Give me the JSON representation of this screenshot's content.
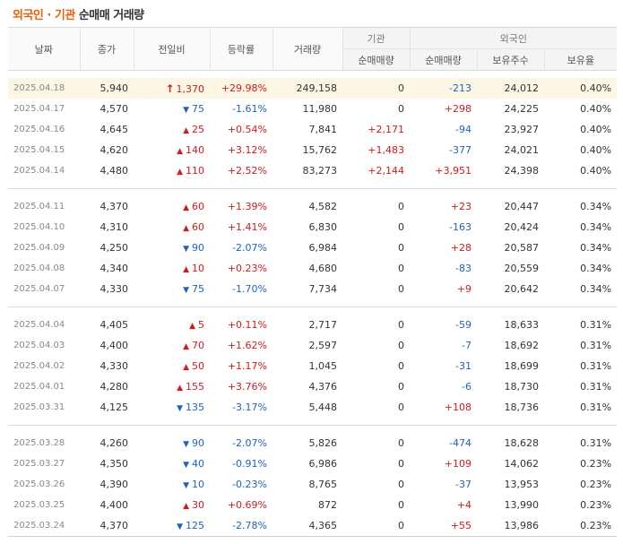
{
  "title": {
    "part1": "외국인 · 기관",
    "part2": "순매매 거래량"
  },
  "headers": {
    "date": "날짜",
    "close": "종가",
    "change": "전일비",
    "rate": "등락률",
    "volume": "거래량",
    "institution": "기관",
    "inst_net": "순매매량",
    "foreign": "외국인",
    "for_net": "순매매량",
    "for_hold": "보유주수",
    "for_ratio": "보유율"
  },
  "groups": [
    [
      {
        "date": "2025.04.18",
        "close": "5,940",
        "dir": "upper",
        "change": "1,370",
        "rate": "+29.98%",
        "volume": "249,158",
        "inst": "0",
        "foreign": "-213",
        "hold": "24,012",
        "ratio": "0.40%",
        "highlight": true
      },
      {
        "date": "2025.04.17",
        "close": "4,570",
        "dir": "down",
        "change": "75",
        "rate": "-1.61%",
        "volume": "11,980",
        "inst": "0",
        "foreign": "+298",
        "hold": "24,225",
        "ratio": "0.40%"
      },
      {
        "date": "2025.04.16",
        "close": "4,645",
        "dir": "up",
        "change": "25",
        "rate": "+0.54%",
        "volume": "7,841",
        "inst": "+2,171",
        "foreign": "-94",
        "hold": "23,927",
        "ratio": "0.40%"
      },
      {
        "date": "2025.04.15",
        "close": "4,620",
        "dir": "up",
        "change": "140",
        "rate": "+3.12%",
        "volume": "15,762",
        "inst": "+1,483",
        "foreign": "-377",
        "hold": "24,021",
        "ratio": "0.40%"
      },
      {
        "date": "2025.04.14",
        "close": "4,480",
        "dir": "up",
        "change": "110",
        "rate": "+2.52%",
        "volume": "83,273",
        "inst": "+2,144",
        "foreign": "+3,951",
        "hold": "24,398",
        "ratio": "0.40%"
      }
    ],
    [
      {
        "date": "2025.04.11",
        "close": "4,370",
        "dir": "up",
        "change": "60",
        "rate": "+1.39%",
        "volume": "4,582",
        "inst": "0",
        "foreign": "+23",
        "hold": "20,447",
        "ratio": "0.34%"
      },
      {
        "date": "2025.04.10",
        "close": "4,310",
        "dir": "up",
        "change": "60",
        "rate": "+1.41%",
        "volume": "6,830",
        "inst": "0",
        "foreign": "-163",
        "hold": "20,424",
        "ratio": "0.34%"
      },
      {
        "date": "2025.04.09",
        "close": "4,250",
        "dir": "down",
        "change": "90",
        "rate": "-2.07%",
        "volume": "6,984",
        "inst": "0",
        "foreign": "+28",
        "hold": "20,587",
        "ratio": "0.34%"
      },
      {
        "date": "2025.04.08",
        "close": "4,340",
        "dir": "up",
        "change": "10",
        "rate": "+0.23%",
        "volume": "4,680",
        "inst": "0",
        "foreign": "-83",
        "hold": "20,559",
        "ratio": "0.34%"
      },
      {
        "date": "2025.04.07",
        "close": "4,330",
        "dir": "down",
        "change": "75",
        "rate": "-1.70%",
        "volume": "7,734",
        "inst": "0",
        "foreign": "+9",
        "hold": "20,642",
        "ratio": "0.34%"
      }
    ],
    [
      {
        "date": "2025.04.04",
        "close": "4,405",
        "dir": "up",
        "change": "5",
        "rate": "+0.11%",
        "volume": "2,717",
        "inst": "0",
        "foreign": "-59",
        "hold": "18,633",
        "ratio": "0.31%"
      },
      {
        "date": "2025.04.03",
        "close": "4,400",
        "dir": "up",
        "change": "70",
        "rate": "+1.62%",
        "volume": "2,597",
        "inst": "0",
        "foreign": "-7",
        "hold": "18,692",
        "ratio": "0.31%"
      },
      {
        "date": "2025.04.02",
        "close": "4,330",
        "dir": "up",
        "change": "50",
        "rate": "+1.17%",
        "volume": "1,045",
        "inst": "0",
        "foreign": "-31",
        "hold": "18,699",
        "ratio": "0.31%"
      },
      {
        "date": "2025.04.01",
        "close": "4,280",
        "dir": "up",
        "change": "155",
        "rate": "+3.76%",
        "volume": "4,376",
        "inst": "0",
        "foreign": "-6",
        "hold": "18,730",
        "ratio": "0.31%"
      },
      {
        "date": "2025.03.31",
        "close": "4,125",
        "dir": "down",
        "change": "135",
        "rate": "-3.17%",
        "volume": "5,448",
        "inst": "0",
        "foreign": "+108",
        "hold": "18,736",
        "ratio": "0.31%"
      }
    ],
    [
      {
        "date": "2025.03.28",
        "close": "4,260",
        "dir": "down",
        "change": "90",
        "rate": "-2.07%",
        "volume": "5,826",
        "inst": "0",
        "foreign": "-474",
        "hold": "18,628",
        "ratio": "0.31%"
      },
      {
        "date": "2025.03.27",
        "close": "4,350",
        "dir": "down",
        "change": "40",
        "rate": "-0.91%",
        "volume": "6,986",
        "inst": "0",
        "foreign": "+109",
        "hold": "14,062",
        "ratio": "0.23%"
      },
      {
        "date": "2025.03.26",
        "close": "4,390",
        "dir": "down",
        "change": "10",
        "rate": "-0.23%",
        "volume": "8,765",
        "inst": "0",
        "foreign": "-37",
        "hold": "13,953",
        "ratio": "0.23%"
      },
      {
        "date": "2025.03.25",
        "close": "4,400",
        "dir": "up",
        "change": "30",
        "rate": "+0.69%",
        "volume": "872",
        "inst": "0",
        "foreign": "+4",
        "hold": "13,990",
        "ratio": "0.23%"
      },
      {
        "date": "2025.03.24",
        "close": "4,370",
        "dir": "down",
        "change": "125",
        "rate": "-2.78%",
        "volume": "4,365",
        "inst": "0",
        "foreign": "+55",
        "hold": "13,986",
        "ratio": "0.23%"
      }
    ]
  ],
  "colors": {
    "up": "#d11b1b",
    "down": "#1f61c2",
    "accent": "#e8600a",
    "highlight_row": "#fbf7e4"
  },
  "icons": {
    "upper": "upper-limit-arrow-icon",
    "up": "up-triangle-icon",
    "down": "down-triangle-icon"
  }
}
